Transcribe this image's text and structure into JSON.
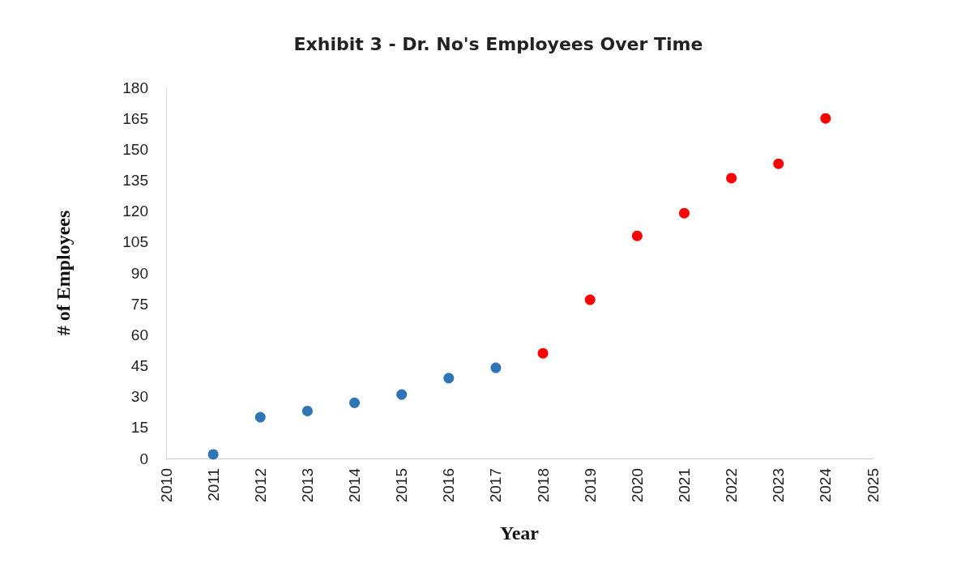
{
  "chart_data": {
    "type": "scatter",
    "title": "Exhibit 3 - Dr. No's Employees Over Time",
    "xlabel": "Year",
    "ylabel": "# of Employees",
    "xlim": [
      2010,
      2025
    ],
    "xticks": [
      2010,
      2011,
      2012,
      2013,
      2014,
      2015,
      2016,
      2017,
      2018,
      2019,
      2020,
      2021,
      2022,
      2023,
      2024,
      2025
    ],
    "ylim": [
      0,
      180
    ],
    "yticks": [
      0,
      15,
      30,
      45,
      60,
      75,
      90,
      105,
      120,
      135,
      150,
      165,
      180
    ],
    "grid": false,
    "marker": "circle",
    "series": [
      {
        "color": "#2e75b6",
        "x": [
          2011,
          2012,
          2013,
          2014,
          2015,
          2016,
          2017
        ],
        "values": [
          2,
          20,
          23,
          27,
          31,
          39,
          44
        ]
      },
      {
        "color": "#ff0000",
        "x": [
          2018,
          2019,
          2020,
          2021,
          2022,
          2023,
          2024
        ],
        "values": [
          51,
          77,
          108,
          119,
          136,
          143,
          165
        ]
      }
    ]
  }
}
